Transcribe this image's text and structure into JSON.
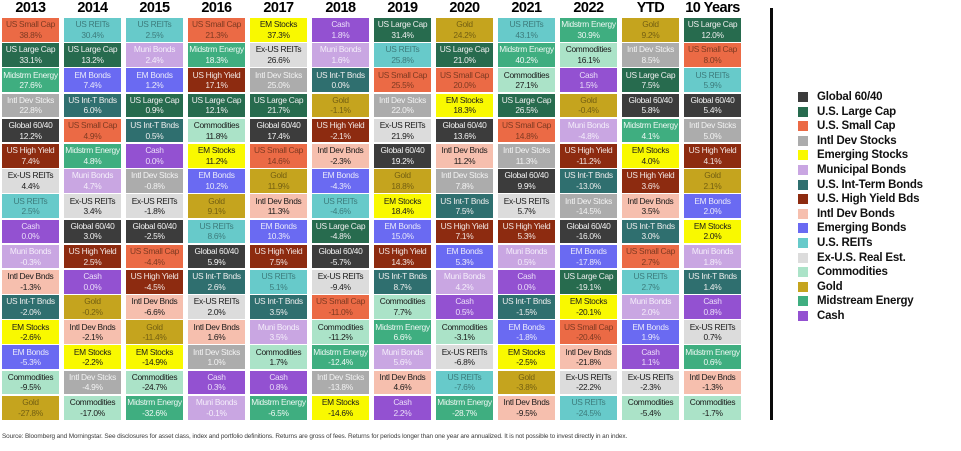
{
  "footer": "Source: Bloomberg and Morningstar. See disclosures for asset class, index and portfolio definitions. Returns are gross of fees. Returns for periods longer than one year are annualized. It is not possible to invest directly in an index.",
  "assets": {
    "global6040": {
      "cell_label": "Global 60/40",
      "legend_label": "Global 60/40",
      "color": "#3C3C3C",
      "text": "#F2F2F2"
    },
    "usLargeCap": {
      "cell_label": "US Large Cap",
      "legend_label": "U.S. Large Cap",
      "color": "#276B4E",
      "text": "#EDEDED"
    },
    "usSmallCap": {
      "cell_label": "US Small Cap",
      "legend_label": "U.S. Small Cap",
      "color": "#EB6A45",
      "text": "#7E3A22"
    },
    "intlDevStocks": {
      "cell_label": "Intl Dev Stcks",
      "legend_label": "Intl Dev Stocks",
      "color": "#ACACAC",
      "text": "#F2F2F2"
    },
    "emStocks": {
      "cell_label": "EM Stocks",
      "legend_label": "Emerging Stocks",
      "color": "#F9F900",
      "text": "#1A1A1A"
    },
    "muniBonds": {
      "cell_label": "Muni Bonds",
      "legend_label": "Municipal Bonds",
      "color": "#C9A6E2",
      "text": "#F4EDFA"
    },
    "usIntTBnds": {
      "cell_label": "US Int-T Bnds",
      "legend_label": "U.S. Int-Term Bonds",
      "color": "#2F6F6F",
      "text": "#EDEDED"
    },
    "usHighYield": {
      "cell_label": "US High Yield",
      "legend_label": "U.S. High Yield Bds",
      "color": "#8D2B10",
      "text": "#F0E3DF"
    },
    "intlDevBnds": {
      "cell_label": "Intl Dev Bnds",
      "legend_label": "Intl Dev Bonds",
      "color": "#F6BFAE",
      "text": "#1A1A1A"
    },
    "emBonds": {
      "cell_label": "EM Bonds",
      "legend_label": "Emerging Bonds",
      "color": "#6A6AF2",
      "text": "#E8E8FA"
    },
    "usREITs": {
      "cell_label": "US REITs",
      "legend_label": "U.S. REITs",
      "color": "#67CACA",
      "text": "#3D7C7C"
    },
    "exUSREITs": {
      "cell_label": "Ex-US REITs",
      "legend_label": "Ex-U.S. Real Est.",
      "color": "#DCDCDC",
      "text": "#1A1A1A"
    },
    "commodities": {
      "cell_label": "Commodities",
      "legend_label": "Commodities",
      "color": "#ABE3C8",
      "text": "#1A1A1A"
    },
    "gold": {
      "cell_label": "Gold",
      "legend_label": "Gold",
      "color": "#C5A41E",
      "text": "#746012"
    },
    "midstrmEnergy": {
      "cell_label": "Midstrm Energy",
      "legend_label": "Midstream Energy",
      "color": "#3FAE80",
      "text": "#EDF7F2"
    },
    "cash": {
      "cell_label": "Cash",
      "legend_label": "Cash",
      "color": "#9351D1",
      "text": "#EADCF8"
    }
  },
  "legend_order": [
    "global6040",
    "usLargeCap",
    "usSmallCap",
    "intlDevStocks",
    "emStocks",
    "muniBonds",
    "usIntTBnds",
    "usHighYield",
    "intlDevBnds",
    "emBonds",
    "usREITs",
    "exUSREITs",
    "commodities",
    "gold",
    "midstrmEnergy",
    "cash"
  ],
  "chart_data": {
    "type": "table",
    "title": "Asset class total returns ranked by year (%)",
    "value_format": "percent, one decimal",
    "columns": [
      {
        "label": "2013",
        "cells": [
          [
            "usSmallCap",
            38.8
          ],
          [
            "usLargeCap",
            33.1
          ],
          [
            "midstrmEnergy",
            27.6
          ],
          [
            "intlDevStocks",
            22.8
          ],
          [
            "global6040",
            12.2
          ],
          [
            "usHighYield",
            7.4
          ],
          [
            "exUSREITs",
            4.4
          ],
          [
            "usREITs",
            2.5
          ],
          [
            "cash",
            0.0
          ],
          [
            "muniBonds",
            -0.3
          ],
          [
            "intlDevBnds",
            -1.3
          ],
          [
            "usIntTBnds",
            -2.0
          ],
          [
            "emStocks",
            -2.6
          ],
          [
            "emBonds",
            -5.3
          ],
          [
            "commodities",
            -9.5
          ],
          [
            "gold",
            -27.8
          ]
        ]
      },
      {
        "label": "2014",
        "cells": [
          [
            "usREITs",
            30.4
          ],
          [
            "usLargeCap",
            13.2
          ],
          [
            "emBonds",
            7.4
          ],
          [
            "usIntTBnds",
            6.0
          ],
          [
            "usSmallCap",
            4.9
          ],
          [
            "midstrmEnergy",
            4.8
          ],
          [
            "muniBonds",
            4.7
          ],
          [
            "exUSREITs",
            3.4
          ],
          [
            "global6040",
            3.0
          ],
          [
            "usHighYield",
            2.5
          ],
          [
            "cash",
            0.0
          ],
          [
            "gold",
            -0.2
          ],
          [
            "intlDevBnds",
            -2.1
          ],
          [
            "emStocks",
            -2.2
          ],
          [
            "intlDevStocks",
            -4.9
          ],
          [
            "commodities",
            -17.0
          ]
        ]
      },
      {
        "label": "2015",
        "cells": [
          [
            "usREITs",
            2.5
          ],
          [
            "muniBonds",
            2.4
          ],
          [
            "emBonds",
            1.2
          ],
          [
            "usLargeCap",
            0.9
          ],
          [
            "usIntTBnds",
            0.5
          ],
          [
            "cash",
            0.0
          ],
          [
            "intlDevStocks",
            -0.8
          ],
          [
            "exUSREITs",
            -1.8
          ],
          [
            "global6040",
            -2.5
          ],
          [
            "usSmallCap",
            -4.4
          ],
          [
            "usHighYield",
            -4.5
          ],
          [
            "intlDevBnds",
            -6.6
          ],
          [
            "gold",
            -11.4
          ],
          [
            "emStocks",
            -14.9
          ],
          [
            "commodities",
            -24.7
          ],
          [
            "midstrmEnergy",
            -32.6
          ]
        ]
      },
      {
        "label": "2016",
        "cells": [
          [
            "usSmallCap",
            21.3
          ],
          [
            "midstrmEnergy",
            18.3
          ],
          [
            "usHighYield",
            17.1
          ],
          [
            "usLargeCap",
            12.1
          ],
          [
            "commodities",
            11.8
          ],
          [
            "emStocks",
            11.2
          ],
          [
            "emBonds",
            10.2
          ],
          [
            "gold",
            9.1
          ],
          [
            "usREITs",
            8.6
          ],
          [
            "global6040",
            5.9
          ],
          [
            "usIntTBnds",
            2.6
          ],
          [
            "exUSREITs",
            2.0
          ],
          [
            "intlDevBnds",
            1.6
          ],
          [
            "intlDevStocks",
            1.0
          ],
          [
            "cash",
            0.3
          ],
          [
            "muniBonds",
            -0.1
          ]
        ]
      },
      {
        "label": "2017",
        "cells": [
          [
            "emStocks",
            37.3
          ],
          [
            "exUSREITs",
            26.6
          ],
          [
            "intlDevStocks",
            25.0
          ],
          [
            "usLargeCap",
            21.7
          ],
          [
            "global6040",
            17.4
          ],
          [
            "usSmallCap",
            14.6
          ],
          [
            "gold",
            11.9
          ],
          [
            "intlDevBnds",
            11.3
          ],
          [
            "emBonds",
            10.3
          ],
          [
            "usHighYield",
            7.5
          ],
          [
            "usREITs",
            5.1
          ],
          [
            "usIntTBnds",
            3.5
          ],
          [
            "muniBonds",
            3.5
          ],
          [
            "commodities",
            1.7
          ],
          [
            "cash",
            0.8
          ],
          [
            "midstrmEnergy",
            -6.5
          ]
        ]
      },
      {
        "label": "2018",
        "cells": [
          [
            "cash",
            1.8
          ],
          [
            "muniBonds",
            1.6
          ],
          [
            "usIntTBnds",
            0.0
          ],
          [
            "gold",
            -1.1
          ],
          [
            "usHighYield",
            -2.1
          ],
          [
            "intlDevBnds",
            -2.3
          ],
          [
            "emBonds",
            -4.3
          ],
          [
            "usREITs",
            -4.6
          ],
          [
            "usLargeCap",
            -4.8
          ],
          [
            "global6040",
            -5.7
          ],
          [
            "exUSREITs",
            -9.4
          ],
          [
            "usSmallCap",
            -11.0
          ],
          [
            "commodities",
            -11.2
          ],
          [
            "midstrmEnergy",
            -12.4
          ],
          [
            "intlDevStocks",
            -13.8
          ],
          [
            "emStocks",
            -14.6
          ]
        ]
      },
      {
        "label": "2019",
        "cells": [
          [
            "usLargeCap",
            31.4
          ],
          [
            "usREITs",
            25.8
          ],
          [
            "usSmallCap",
            25.5
          ],
          [
            "intlDevStocks",
            22.0
          ],
          [
            "exUSREITs",
            21.9
          ],
          [
            "global6040",
            19.2
          ],
          [
            "gold",
            18.8
          ],
          [
            "emStocks",
            18.4
          ],
          [
            "emBonds",
            15.0
          ],
          [
            "usHighYield",
            14.3
          ],
          [
            "usIntTBnds",
            8.7
          ],
          [
            "commodities",
            7.7
          ],
          [
            "midstrmEnergy",
            6.6
          ],
          [
            "muniBonds",
            5.6
          ],
          [
            "intlDevBnds",
            4.6
          ],
          [
            "cash",
            2.2
          ]
        ]
      },
      {
        "label": "2020",
        "cells": [
          [
            "gold",
            24.2
          ],
          [
            "usLargeCap",
            21.0
          ],
          [
            "usSmallCap",
            20.0
          ],
          [
            "emStocks",
            18.3
          ],
          [
            "global6040",
            13.6
          ],
          [
            "intlDevBnds",
            11.2
          ],
          [
            "intlDevStocks",
            7.8
          ],
          [
            "usIntTBnds",
            7.5
          ],
          [
            "usHighYield",
            7.1
          ],
          [
            "emBonds",
            5.3
          ],
          [
            "muniBonds",
            4.2
          ],
          [
            "cash",
            0.5
          ],
          [
            "commodities",
            -3.1
          ],
          [
            "exUSREITs",
            -6.8
          ],
          [
            "usREITs",
            -7.6
          ],
          [
            "midstrmEnergy",
            -28.7
          ]
        ]
      },
      {
        "label": "2021",
        "cells": [
          [
            "usREITs",
            43.1
          ],
          [
            "midstrmEnergy",
            40.2
          ],
          [
            "commodities",
            27.1
          ],
          [
            "usLargeCap",
            26.5
          ],
          [
            "usSmallCap",
            14.8
          ],
          [
            "intlDevStocks",
            11.3
          ],
          [
            "global6040",
            9.9
          ],
          [
            "exUSREITs",
            5.7
          ],
          [
            "usHighYield",
            5.3
          ],
          [
            "muniBonds",
            0.5
          ],
          [
            "cash",
            0.0
          ],
          [
            "usIntTBnds",
            -1.5
          ],
          [
            "emBonds",
            -1.8
          ],
          [
            "emStocks",
            -2.5
          ],
          [
            "gold",
            -3.8
          ],
          [
            "intlDevBnds",
            -9.5
          ]
        ]
      },
      {
        "label": "2022",
        "cells": [
          [
            "midstrmEnergy",
            30.9
          ],
          [
            "commodities",
            16.1
          ],
          [
            "cash",
            1.5
          ],
          [
            "gold",
            -0.4
          ],
          [
            "muniBonds",
            -4.8
          ],
          [
            "usHighYield",
            -11.2
          ],
          [
            "usIntTBnds",
            -13.0
          ],
          [
            "intlDevStocks",
            -14.5
          ],
          [
            "global6040",
            -16.0
          ],
          [
            "emBonds",
            -17.8
          ],
          [
            "usLargeCap",
            -19.1
          ],
          [
            "emStocks",
            -20.1
          ],
          [
            "usSmallCap",
            -20.4
          ],
          [
            "intlDevBnds",
            -21.8
          ],
          [
            "exUSREITs",
            -22.2
          ],
          [
            "usREITs",
            -24.5
          ]
        ]
      },
      {
        "label": "YTD",
        "cells": [
          [
            "gold",
            9.2
          ],
          [
            "intlDevStocks",
            8.5
          ],
          [
            "usLargeCap",
            7.5
          ],
          [
            "global6040",
            5.8
          ],
          [
            "midstrmEnergy",
            4.1
          ],
          [
            "emStocks",
            4.0
          ],
          [
            "usHighYield",
            3.6
          ],
          [
            "intlDevBnds",
            3.5
          ],
          [
            "usIntTBnds",
            3.0
          ],
          [
            "usSmallCap",
            2.7
          ],
          [
            "usREITs",
            2.7
          ],
          [
            "muniBonds",
            2.0
          ],
          [
            "emBonds",
            1.9
          ],
          [
            "cash",
            1.1
          ],
          [
            "exUSREITs",
            -2.3
          ],
          [
            "commodities",
            -5.4
          ]
        ]
      },
      {
        "label": "10 Years",
        "cells": [
          [
            "usLargeCap",
            12.0
          ],
          [
            "usSmallCap",
            8.0
          ],
          [
            "usREITs",
            5.9
          ],
          [
            "global6040",
            5.4
          ],
          [
            "intlDevStocks",
            5.0
          ],
          [
            "usHighYield",
            4.1
          ],
          [
            "gold",
            2.1
          ],
          [
            "emBonds",
            2.0
          ],
          [
            "emStocks",
            2.0
          ],
          [
            "muniBonds",
            1.8
          ],
          [
            "usIntTBnds",
            1.4
          ],
          [
            "cash",
            0.8
          ],
          [
            "exUSREITs",
            0.7
          ],
          [
            "midstrmEnergy",
            0.6
          ],
          [
            "intlDevBnds",
            -1.3
          ],
          [
            "commodities",
            -1.7
          ]
        ]
      }
    ]
  }
}
